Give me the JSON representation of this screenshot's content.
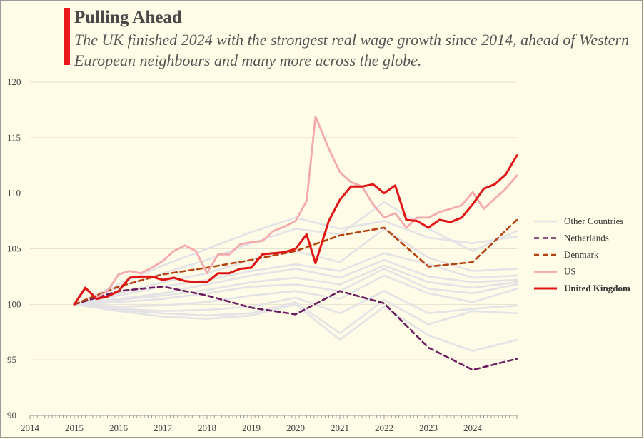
{
  "header": {
    "title": "Pulling Ahead",
    "subtitle": "The UK finished 2024 with the strongest real wage growth since 2014, ahead of Western European neighbours and many more across the globe."
  },
  "colors": {
    "background": "#fefbe7",
    "accent": "#e8191c",
    "other": "#e3e3e7",
    "netherlands": "#6b1d5e",
    "denmark": "#b5420f",
    "us": "#f4a9ad",
    "uk": "#e01414",
    "grid": "#e6e2cf"
  },
  "chart_data": {
    "type": "line",
    "title": "Pulling Ahead",
    "subtitle": "The UK finished 2024 with the strongest real wage growth since 2014, ahead of Western European neighbours and many more across the globe.",
    "xlabel": "",
    "ylabel": "",
    "xlim": [
      2014,
      2025
    ],
    "ylim": [
      90,
      120
    ],
    "x_ticks": [
      "2014",
      "2015",
      "2016",
      "2017",
      "2018",
      "2019",
      "2020",
      "2021",
      "2022",
      "2023",
      "2024"
    ],
    "y_ticks": [
      "90",
      "95",
      "100",
      "105",
      "110",
      "115",
      "120"
    ],
    "grid": "horizontal",
    "legend_position": "right",
    "legend": [
      {
        "label": "Other Countries",
        "key": "other",
        "style": "solid",
        "bold": false
      },
      {
        "label": "Netherlands",
        "key": "netherlands",
        "style": "dashed",
        "bold": false
      },
      {
        "label": "Denmark",
        "key": "denmark",
        "style": "dashed",
        "bold": false
      },
      {
        "label": "US",
        "key": "us",
        "style": "solid",
        "bold": false
      },
      {
        "label": "United Kingdom",
        "key": "uk",
        "style": "solid",
        "bold": true
      }
    ],
    "series": [
      {
        "name": "Other Countries",
        "group": "other",
        "points": [
          [
            2015,
            100
          ],
          [
            2016,
            101.8
          ],
          [
            2017,
            103.5
          ],
          [
            2018,
            105
          ],
          [
            2019,
            106.5
          ],
          [
            2020,
            107.8
          ],
          [
            2021,
            106.8
          ],
          [
            2022,
            107.5
          ],
          [
            2023,
            106
          ],
          [
            2024,
            105.5
          ],
          [
            2025,
            106.1
          ]
        ]
      },
      {
        "name": "Other Countries",
        "group": "other",
        "points": [
          [
            2015,
            100
          ],
          [
            2016,
            101.5
          ],
          [
            2017,
            102.8
          ],
          [
            2018,
            104
          ],
          [
            2019,
            105.5
          ],
          [
            2020,
            106.8
          ],
          [
            2021,
            106.3
          ],
          [
            2022,
            109.2
          ],
          [
            2023,
            106.8
          ],
          [
            2024,
            104.8
          ],
          [
            2025,
            106.6
          ]
        ]
      },
      {
        "name": "Other Countries",
        "group": "other",
        "points": [
          [
            2015,
            100
          ],
          [
            2016,
            101
          ],
          [
            2017,
            102
          ],
          [
            2018,
            102.8
          ],
          [
            2019,
            104
          ],
          [
            2020,
            104.8
          ],
          [
            2021,
            103.8
          ],
          [
            2022,
            106.8
          ],
          [
            2023,
            104.2
          ],
          [
            2024,
            103
          ],
          [
            2025,
            103.2
          ]
        ]
      },
      {
        "name": "Other Countries",
        "group": "other",
        "points": [
          [
            2015,
            100
          ],
          [
            2016,
            100.8
          ],
          [
            2017,
            101.6
          ],
          [
            2018,
            102.2
          ],
          [
            2019,
            103
          ],
          [
            2020,
            103.6
          ],
          [
            2021,
            103
          ],
          [
            2022,
            104.6
          ],
          [
            2023,
            103.6
          ],
          [
            2024,
            102.4
          ],
          [
            2025,
            102.6
          ]
        ]
      },
      {
        "name": "Other Countries",
        "group": "other",
        "points": [
          [
            2015,
            100
          ],
          [
            2016,
            100.5
          ],
          [
            2017,
            101
          ],
          [
            2018,
            101.8
          ],
          [
            2019,
            102.6
          ],
          [
            2020,
            103.2
          ],
          [
            2021,
            102.4
          ],
          [
            2022,
            104
          ],
          [
            2023,
            102.5
          ],
          [
            2024,
            102
          ],
          [
            2025,
            102.2
          ]
        ]
      },
      {
        "name": "Other Countries",
        "group": "other",
        "points": [
          [
            2015,
            100
          ],
          [
            2016,
            100.4
          ],
          [
            2017,
            100.8
          ],
          [
            2018,
            101.3
          ],
          [
            2019,
            102
          ],
          [
            2020,
            102.4
          ],
          [
            2021,
            101.8
          ],
          [
            2022,
            103.5
          ],
          [
            2023,
            102
          ],
          [
            2024,
            101.5
          ],
          [
            2025,
            102
          ]
        ]
      },
      {
        "name": "Other Countries",
        "group": "other",
        "points": [
          [
            2015,
            100
          ],
          [
            2016,
            100.2
          ],
          [
            2017,
            100.5
          ],
          [
            2018,
            101
          ],
          [
            2019,
            101.6
          ],
          [
            2020,
            101.8
          ],
          [
            2021,
            101.2
          ],
          [
            2022,
            103.2
          ],
          [
            2023,
            101.4
          ],
          [
            2024,
            101
          ],
          [
            2025,
            101.8
          ]
        ]
      },
      {
        "name": "Other Countries",
        "group": "other",
        "points": [
          [
            2015,
            100
          ],
          [
            2016,
            99.8
          ],
          [
            2017,
            99.9
          ],
          [
            2018,
            100.2
          ],
          [
            2019,
            100.8
          ],
          [
            2020,
            101.2
          ],
          [
            2021,
            100.5
          ],
          [
            2022,
            102.6
          ],
          [
            2023,
            101
          ],
          [
            2024,
            100.2
          ],
          [
            2025,
            101.4
          ]
        ]
      },
      {
        "name": "Other Countries",
        "group": "other",
        "points": [
          [
            2015,
            100
          ],
          [
            2016,
            99.6
          ],
          [
            2017,
            99.4
          ],
          [
            2018,
            99.5
          ],
          [
            2019,
            99.8
          ],
          [
            2020,
            100.6
          ],
          [
            2021,
            99.2
          ],
          [
            2022,
            101.2
          ],
          [
            2023,
            99.2
          ],
          [
            2024,
            99.6
          ],
          [
            2025,
            99.9
          ]
        ]
      },
      {
        "name": "Other Countries",
        "group": "other",
        "points": [
          [
            2015,
            100
          ],
          [
            2016,
            99.5
          ],
          [
            2017,
            99.2
          ],
          [
            2018,
            99
          ],
          [
            2019,
            99.2
          ],
          [
            2020,
            100.2
          ],
          [
            2021,
            97.4
          ],
          [
            2022,
            100.4
          ],
          [
            2023,
            98.2
          ],
          [
            2024,
            99.4
          ],
          [
            2025,
            99.2
          ]
        ]
      },
      {
        "name": "Other Countries",
        "group": "other",
        "points": [
          [
            2015,
            100
          ],
          [
            2016,
            99.4
          ],
          [
            2017,
            98.9
          ],
          [
            2018,
            98.7
          ],
          [
            2019,
            99
          ],
          [
            2020,
            100
          ],
          [
            2021,
            96.8
          ],
          [
            2022,
            99.8
          ],
          [
            2023,
            97.2
          ],
          [
            2024,
            95.8
          ],
          [
            2025,
            96.8
          ]
        ]
      },
      {
        "name": "Netherlands",
        "group": "netherlands",
        "points": [
          [
            2015,
            100
          ],
          [
            2016,
            101.2
          ],
          [
            2017,
            101.6
          ],
          [
            2018,
            100.8
          ],
          [
            2019,
            99.7
          ],
          [
            2020,
            99.1
          ],
          [
            2021,
            101.2
          ],
          [
            2022,
            100.1
          ],
          [
            2023,
            96.1
          ],
          [
            2024,
            94.1
          ],
          [
            2025,
            95.1
          ]
        ]
      },
      {
        "name": "Denmark",
        "group": "denmark",
        "points": [
          [
            2015,
            100
          ],
          [
            2016,
            101.6
          ],
          [
            2017,
            102.7
          ],
          [
            2018,
            103.3
          ],
          [
            2019,
            104
          ],
          [
            2020,
            104.8
          ],
          [
            2021,
            106.2
          ],
          [
            2022,
            106.9
          ],
          [
            2023,
            103.4
          ],
          [
            2024,
            103.8
          ],
          [
            2025,
            107.6
          ]
        ]
      },
      {
        "name": "US",
        "group": "us",
        "points": [
          [
            2015,
            100
          ],
          [
            2015.25,
            101.4
          ],
          [
            2015.5,
            100.6
          ],
          [
            2015.75,
            101.2
          ],
          [
            2016,
            102.7
          ],
          [
            2016.25,
            103
          ],
          [
            2016.5,
            102.8
          ],
          [
            2016.75,
            103.3
          ],
          [
            2017,
            103.9
          ],
          [
            2017.25,
            104.8
          ],
          [
            2017.5,
            105.3
          ],
          [
            2017.75,
            104.8
          ],
          [
            2018,
            102.8
          ],
          [
            2018.25,
            104.5
          ],
          [
            2018.5,
            104.5
          ],
          [
            2018.75,
            105.4
          ],
          [
            2019,
            105.6
          ],
          [
            2019.25,
            105.7
          ],
          [
            2019.5,
            106.6
          ],
          [
            2019.75,
            107
          ],
          [
            2020,
            107.5
          ],
          [
            2020.25,
            109.3
          ],
          [
            2020.45,
            116.9
          ],
          [
            2020.75,
            114
          ],
          [
            2021,
            111.9
          ],
          [
            2021.25,
            111
          ],
          [
            2021.5,
            110.6
          ],
          [
            2021.75,
            109
          ],
          [
            2022,
            107.8
          ],
          [
            2022.25,
            108.2
          ],
          [
            2022.5,
            106.9
          ],
          [
            2022.75,
            107.8
          ],
          [
            2023,
            107.8
          ],
          [
            2023.25,
            108.3
          ],
          [
            2023.5,
            108.6
          ],
          [
            2023.75,
            108.9
          ],
          [
            2024,
            110.1
          ],
          [
            2024.25,
            108.6
          ],
          [
            2024.5,
            109.5
          ],
          [
            2024.75,
            110.4
          ],
          [
            2025,
            111.6
          ]
        ]
      },
      {
        "name": "United Kingdom",
        "group": "uk",
        "points": [
          [
            2015,
            100
          ],
          [
            2015.25,
            101.5
          ],
          [
            2015.5,
            100.5
          ],
          [
            2015.75,
            100.7
          ],
          [
            2016,
            101.2
          ],
          [
            2016.25,
            102.4
          ],
          [
            2016.5,
            102.5
          ],
          [
            2016.75,
            102.5
          ],
          [
            2017,
            102.2
          ],
          [
            2017.25,
            102.4
          ],
          [
            2017.5,
            102.1
          ],
          [
            2017.75,
            102
          ],
          [
            2018,
            102
          ],
          [
            2018.25,
            102.8
          ],
          [
            2018.5,
            102.8
          ],
          [
            2018.75,
            103.2
          ],
          [
            2019,
            103.3
          ],
          [
            2019.25,
            104.5
          ],
          [
            2019.5,
            104.6
          ],
          [
            2019.75,
            104.7
          ],
          [
            2020,
            105
          ],
          [
            2020.25,
            106.3
          ],
          [
            2020.45,
            103.7
          ],
          [
            2020.75,
            107.5
          ],
          [
            2021,
            109.4
          ],
          [
            2021.25,
            110.6
          ],
          [
            2021.5,
            110.6
          ],
          [
            2021.75,
            110.8
          ],
          [
            2022,
            110
          ],
          [
            2022.25,
            110.7
          ],
          [
            2022.5,
            107.6
          ],
          [
            2022.75,
            107.5
          ],
          [
            2023,
            106.9
          ],
          [
            2023.25,
            107.6
          ],
          [
            2023.5,
            107.4
          ],
          [
            2023.75,
            107.8
          ],
          [
            2024,
            109
          ],
          [
            2024.25,
            110.4
          ],
          [
            2024.5,
            110.8
          ],
          [
            2024.75,
            111.7
          ],
          [
            2025,
            113.4
          ]
        ]
      }
    ]
  }
}
